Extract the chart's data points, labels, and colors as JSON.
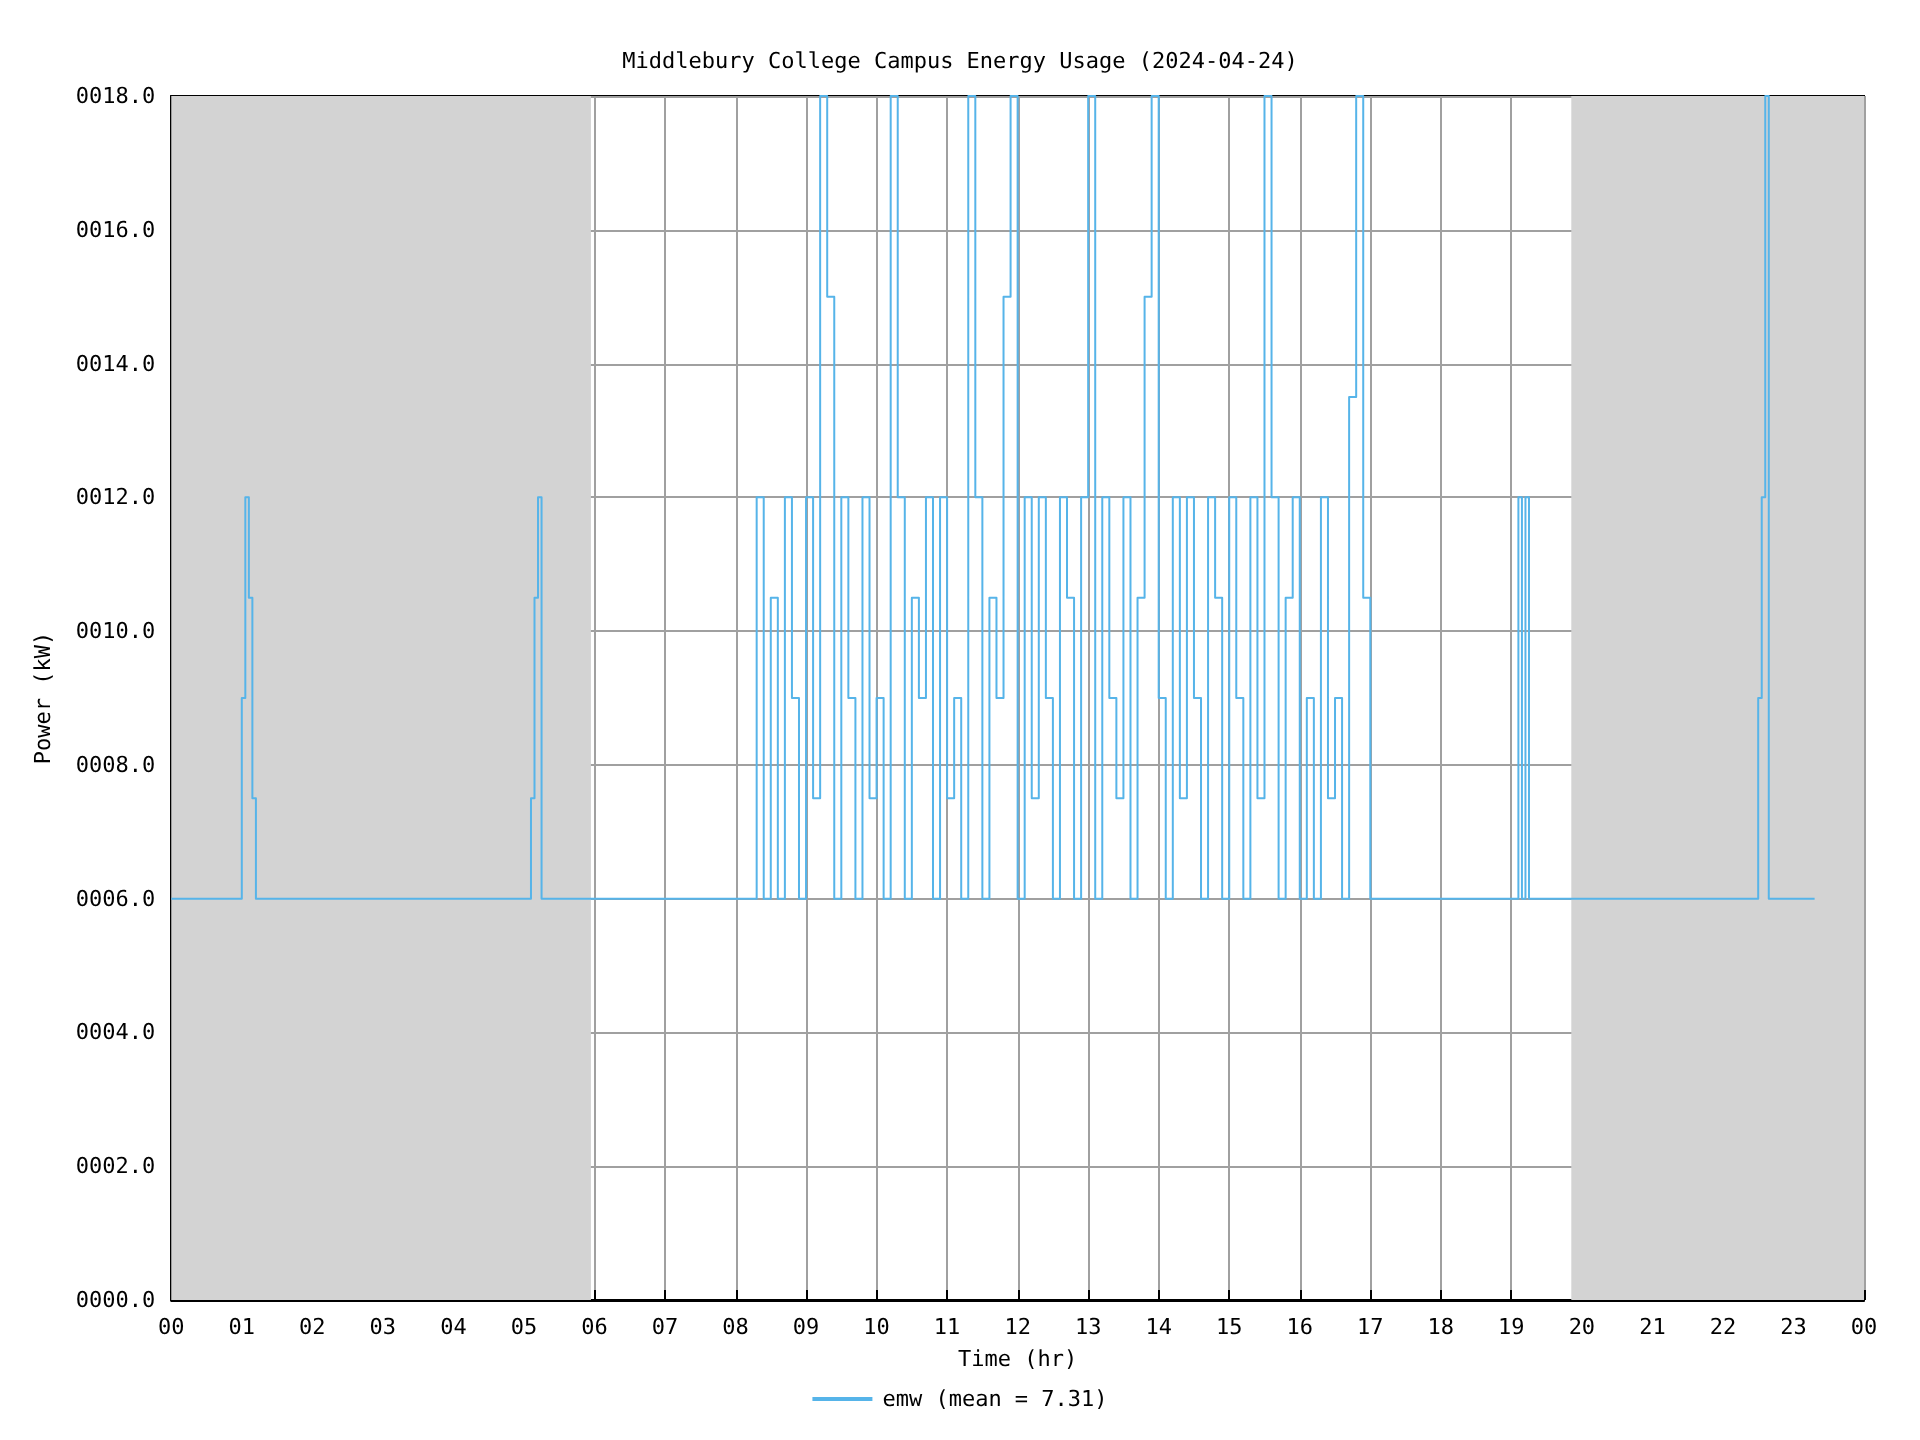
{
  "chart_data": {
    "type": "step",
    "title": "Middlebury College Campus Energy Usage (2024-04-24)",
    "xlabel": "Time (hr)",
    "ylabel": "Power (kW)",
    "xlim": [
      0,
      24
    ],
    "ylim": [
      0,
      18
    ],
    "xticks": [
      {
        "value": 0,
        "label": "00"
      },
      {
        "value": 1,
        "label": "01"
      },
      {
        "value": 2,
        "label": "02"
      },
      {
        "value": 3,
        "label": "03"
      },
      {
        "value": 4,
        "label": "04"
      },
      {
        "value": 5,
        "label": "05"
      },
      {
        "value": 6,
        "label": "06"
      },
      {
        "value": 7,
        "label": "07"
      },
      {
        "value": 8,
        "label": "08"
      },
      {
        "value": 9,
        "label": "09"
      },
      {
        "value": 10,
        "label": "10"
      },
      {
        "value": 11,
        "label": "11"
      },
      {
        "value": 12,
        "label": "12"
      },
      {
        "value": 13,
        "label": "13"
      },
      {
        "value": 14,
        "label": "14"
      },
      {
        "value": 15,
        "label": "15"
      },
      {
        "value": 16,
        "label": "16"
      },
      {
        "value": 17,
        "label": "17"
      },
      {
        "value": 18,
        "label": "18"
      },
      {
        "value": 19,
        "label": "19"
      },
      {
        "value": 20,
        "label": "20"
      },
      {
        "value": 21,
        "label": "21"
      },
      {
        "value": 22,
        "label": "22"
      },
      {
        "value": 23,
        "label": "23"
      },
      {
        "value": 24,
        "label": "00"
      }
    ],
    "yticks": [
      {
        "value": 0,
        "label": "0000.0"
      },
      {
        "value": 2,
        "label": "0002.0"
      },
      {
        "value": 4,
        "label": "0004.0"
      },
      {
        "value": 6,
        "label": "0006.0"
      },
      {
        "value": 8,
        "label": "0008.0"
      },
      {
        "value": 10,
        "label": "0010.0"
      },
      {
        "value": 12,
        "label": "0012.0"
      },
      {
        "value": 14,
        "label": "0014.0"
      },
      {
        "value": 16,
        "label": "0016.0"
      },
      {
        "value": 18,
        "label": "0018.0"
      }
    ],
    "grid": true,
    "legend": "bottom",
    "marker": "none",
    "bands": [
      {
        "axis": "x",
        "from": 0,
        "to": 5.95,
        "color": "#d3d3d3"
      },
      {
        "axis": "x",
        "from": 19.85,
        "to": 24,
        "color": "#d3d3d3"
      }
    ],
    "series": [
      {
        "name": "emw (mean = 7.31)",
        "color": "#56b4e9",
        "x": [
          0,
          1.0,
          1.05,
          1.1,
          1.15,
          1.2,
          5.1,
          5.15,
          5.2,
          5.25,
          8.3,
          8.4,
          8.5,
          8.6,
          8.7,
          8.8,
          8.9,
          9.0,
          9.1,
          9.2,
          9.3,
          9.4,
          9.5,
          9.6,
          9.7,
          9.8,
          9.9,
          10.0,
          10.1,
          10.2,
          10.3,
          10.4,
          10.5,
          10.6,
          10.7,
          10.8,
          10.9,
          11.0,
          11.1,
          11.2,
          11.3,
          11.4,
          11.5,
          11.6,
          11.7,
          11.8,
          11.9,
          12.0,
          12.1,
          12.2,
          12.3,
          12.4,
          12.5,
          12.6,
          12.7,
          12.8,
          12.9,
          13.0,
          13.1,
          13.2,
          13.3,
          13.4,
          13.5,
          13.6,
          13.7,
          13.8,
          13.9,
          14.0,
          14.1,
          14.2,
          14.3,
          14.4,
          14.5,
          14.6,
          14.7,
          14.8,
          14.9,
          15.0,
          15.1,
          15.2,
          15.3,
          15.4,
          15.5,
          15.6,
          15.7,
          15.8,
          15.9,
          16.0,
          16.1,
          16.2,
          16.3,
          16.4,
          16.5,
          16.6,
          16.7,
          16.8,
          16.9,
          17.0,
          19.1,
          19.15,
          19.2,
          19.25,
          22.5,
          22.55,
          22.6,
          22.65,
          23.3
        ],
        "values": [
          6,
          9,
          12,
          10.5,
          7.5,
          6,
          7.5,
          10.5,
          12,
          6,
          12,
          6,
          10.5,
          6,
          12,
          9,
          6,
          12,
          7.5,
          18,
          15,
          6,
          12,
          9,
          6,
          12,
          7.5,
          9,
          6,
          18,
          12,
          6,
          10.5,
          9,
          12,
          6,
          12,
          7.5,
          9,
          6,
          18,
          12,
          6,
          10.5,
          9,
          15,
          18,
          6,
          12,
          7.5,
          12,
          9,
          6,
          12,
          10.5,
          6,
          12,
          18,
          6,
          12,
          9,
          7.5,
          12,
          6,
          10.5,
          15,
          18,
          9,
          6,
          12,
          7.5,
          12,
          9,
          6,
          12,
          10.5,
          6,
          12,
          9,
          6,
          12,
          7.5,
          18,
          12,
          6,
          10.5,
          12,
          6,
          9,
          6,
          12,
          7.5,
          9,
          6,
          13.5,
          18,
          10.5,
          6,
          12,
          6,
          12,
          6,
          9,
          12,
          18,
          6,
          6
        ]
      }
    ]
  }
}
